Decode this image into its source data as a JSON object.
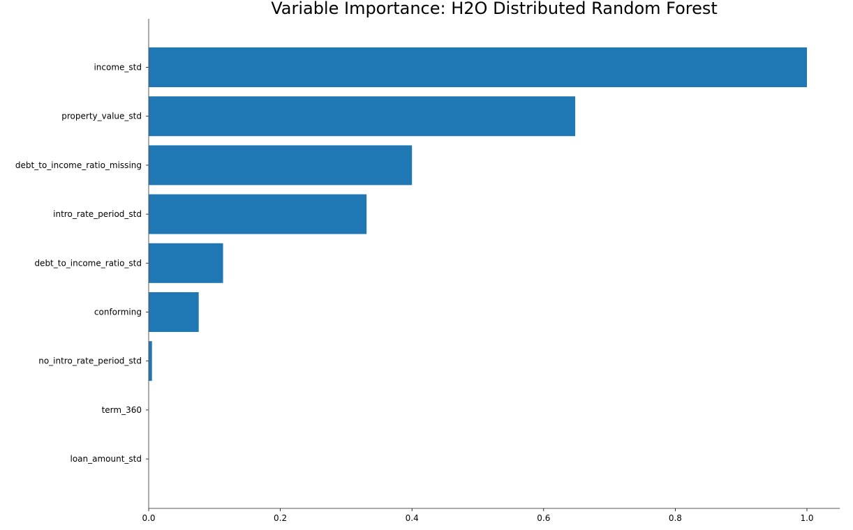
{
  "chart_data": {
    "type": "bar",
    "orientation": "horizontal",
    "title": "Variable Importance: H2O Distributed Random Forest",
    "xlabel": "",
    "ylabel": "",
    "xlim": [
      0,
      1.05
    ],
    "x_ticks": [
      "0.0",
      "0.2",
      "0.4",
      "0.6",
      "0.8",
      "1.0"
    ],
    "categories": [
      "income_std",
      "property_value_std",
      "debt_to_income_ratio_missing",
      "intro_rate_period_std",
      "debt_to_income_ratio_std",
      "conforming",
      "no_intro_rate_period_std",
      "term_360",
      "loan_amount_std"
    ],
    "values": [
      1.0,
      0.648,
      0.4,
      0.331,
      0.113,
      0.076,
      0.005,
      0.0,
      0.0
    ],
    "bar_color": "#1f77b4",
    "grid": false,
    "spines": [
      "left",
      "bottom"
    ]
  }
}
